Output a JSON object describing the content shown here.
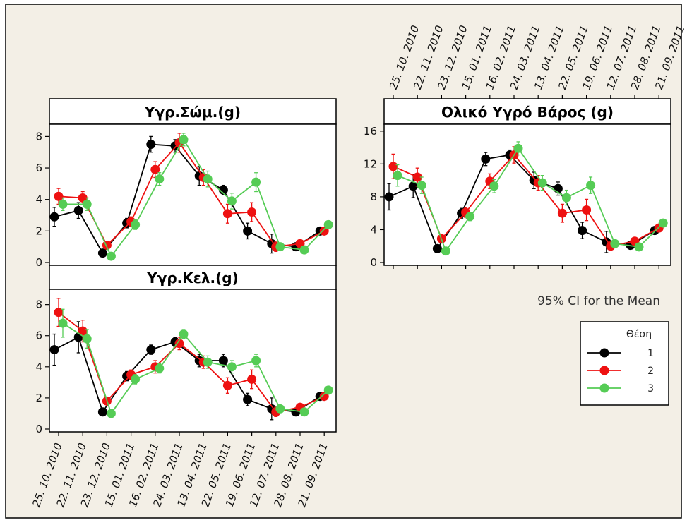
{
  "chart_data": [
    {
      "type": "line",
      "title": "Υγρ.Σώμ.(g)",
      "categories": [
        "25. 10. 2010",
        "22. 11. 2010",
        "23. 12. 2010",
        "15. 01. 2011",
        "16. 02. 2011",
        "24. 03. 2011",
        "13. 04. 2011",
        "22. 05. 2011",
        "19. 06. 2011",
        "12. 07. 2011",
        "28. 08. 2011",
        "21. 09. 2011"
      ],
      "ylim": [
        0,
        8.6
      ],
      "yticks": [
        0,
        2,
        4,
        6,
        8
      ],
      "series": [
        {
          "name": "1",
          "values": [
            2.9,
            3.3,
            0.6,
            2.5,
            7.5,
            7.4,
            5.5,
            4.6,
            2.0,
            1.2,
            1.0,
            2.0
          ],
          "ci": [
            0.6,
            0.5,
            0.2,
            0.3,
            0.5,
            0.4,
            0.6,
            0.3,
            0.5,
            0.6,
            0.2,
            0.2
          ]
        },
        {
          "name": "2",
          "values": [
            4.2,
            4.1,
            1.1,
            2.6,
            5.9,
            7.6,
            5.4,
            3.1,
            3.2,
            1.0,
            1.2,
            2.0
          ],
          "ci": [
            0.5,
            0.4,
            0.2,
            0.3,
            0.5,
            0.6,
            0.5,
            0.6,
            0.6,
            0.3,
            0.2,
            0.2
          ]
        },
        {
          "name": "3",
          "values": [
            3.7,
            3.7,
            0.4,
            2.4,
            5.3,
            7.8,
            5.3,
            3.9,
            5.1,
            1.0,
            0.8,
            2.4
          ],
          "ci": [
            0.4,
            0.4,
            0.2,
            0.3,
            0.4,
            0.4,
            0.5,
            0.5,
            0.6,
            0.2,
            0.2,
            0.2
          ]
        }
      ]
    },
    {
      "type": "line",
      "title": "Υγρ.Κελ.(g)",
      "categories": [
        "25. 10. 2010",
        "22. 11. 2010",
        "23. 12. 2010",
        "15. 01. 2011",
        "16. 02. 2011",
        "24. 03. 2011",
        "13. 04. 2011",
        "22. 05. 2011",
        "19. 06. 2011",
        "12. 07. 2011",
        "28. 08. 2011",
        "21. 09. 2011"
      ],
      "ylim": [
        0,
        8.8
      ],
      "yticks": [
        0,
        2,
        4,
        6,
        8
      ],
      "series": [
        {
          "name": "1",
          "values": [
            5.1,
            5.9,
            1.1,
            3.4,
            5.1,
            5.6,
            4.4,
            4.4,
            1.9,
            1.3,
            1.1,
            2.1
          ],
          "ci": [
            1.0,
            1.0,
            0.2,
            0.3,
            0.3,
            0.3,
            0.4,
            0.4,
            0.4,
            0.7,
            0.2,
            0.2
          ]
        },
        {
          "name": "2",
          "values": [
            7.5,
            6.3,
            1.8,
            3.5,
            4.0,
            5.5,
            4.3,
            2.8,
            3.2,
            1.1,
            1.4,
            2.1
          ],
          "ci": [
            0.9,
            0.7,
            0.2,
            0.3,
            0.4,
            0.4,
            0.4,
            0.5,
            0.6,
            0.3,
            0.2,
            0.2
          ]
        },
        {
          "name": "3",
          "values": [
            6.8,
            5.8,
            1.0,
            3.2,
            3.9,
            6.1,
            4.3,
            4.0,
            4.4,
            1.3,
            1.1,
            2.5
          ],
          "ci": [
            0.9,
            0.6,
            0.2,
            0.3,
            0.3,
            0.3,
            0.4,
            0.4,
            0.4,
            0.2,
            0.2,
            0.2
          ]
        }
      ]
    },
    {
      "type": "line",
      "title": "Ολικό Υγρό Βάρος (g)",
      "categories": [
        "25. 10. 2010",
        "22. 11. 2010",
        "23. 12. 2010",
        "15. 01. 2011",
        "16. 02. 2011",
        "24. 03. 2011",
        "13. 04. 2011",
        "22. 05. 2011",
        "19. 06. 2011",
        "12. 07. 2011",
        "28. 08. 2011",
        "21. 09. 2011"
      ],
      "ylim": [
        0,
        16.5
      ],
      "yticks": [
        0,
        4,
        8,
        12,
        16
      ],
      "series": [
        {
          "name": "1",
          "values": [
            8.0,
            9.3,
            1.7,
            6.0,
            12.6,
            13.1,
            10.0,
            9.0,
            3.9,
            2.5,
            2.1,
            3.9
          ],
          "ci": [
            1.6,
            1.4,
            0.4,
            0.6,
            0.8,
            0.6,
            1.0,
            0.8,
            1.0,
            1.3,
            0.3,
            0.4
          ]
        },
        {
          "name": "2",
          "values": [
            11.7,
            10.4,
            2.9,
            6.1,
            9.9,
            13.1,
            9.7,
            6.0,
            6.4,
            2.0,
            2.6,
            4.2
          ],
          "ci": [
            1.5,
            1.1,
            0.4,
            0.6,
            0.9,
            1.0,
            0.9,
            1.1,
            1.3,
            0.5,
            0.3,
            0.4
          ]
        },
        {
          "name": "3",
          "values": [
            10.6,
            9.4,
            1.4,
            5.6,
            9.3,
            13.9,
            9.7,
            7.9,
            9.4,
            2.3,
            1.9,
            4.8
          ],
          "ci": [
            1.3,
            1.0,
            0.4,
            0.5,
            0.8,
            0.8,
            0.9,
            0.9,
            1.0,
            0.4,
            0.3,
            0.4
          ]
        }
      ]
    }
  ],
  "annotation": "95% CI for the Mean",
  "legend": {
    "title": "Θέση",
    "entries": [
      {
        "label": "1",
        "color": "#000000"
      },
      {
        "label": "2",
        "color": "#ee1111"
      },
      {
        "label": "3",
        "color": "#55cc55"
      }
    ]
  },
  "colors": {
    "series1": "#000000",
    "series2": "#ee1111",
    "series3": "#55cc55",
    "background": "#f3efe6"
  }
}
